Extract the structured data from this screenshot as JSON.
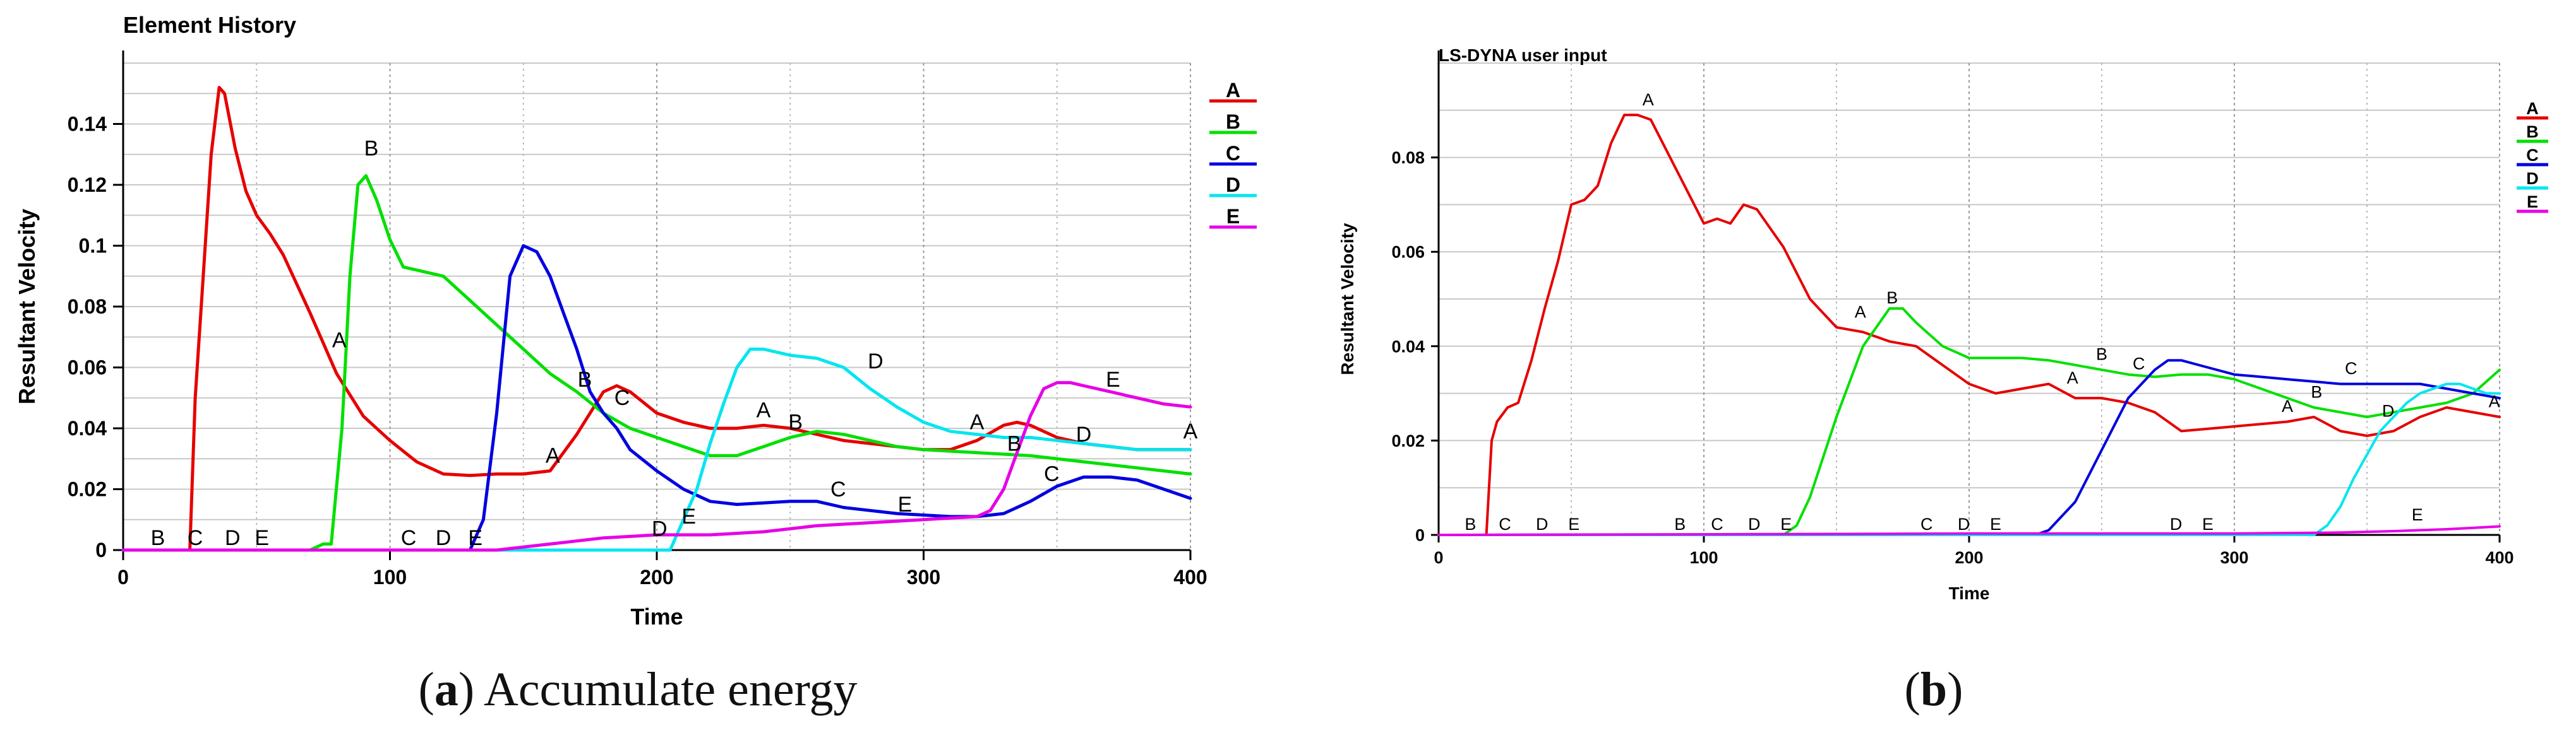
{
  "chart_data": [
    {
      "type": "line",
      "title": "Element History",
      "xlabel": "Time",
      "ylabel": "Resultant Velocity",
      "xlim": [
        0,
        400
      ],
      "ylim": [
        0,
        0.16
      ],
      "xticks": [
        0,
        100,
        200,
        300,
        400
      ],
      "yticks": [
        0,
        0.02,
        0.04,
        0.06,
        0.08,
        0.1,
        0.12,
        0.14
      ],
      "ytick_labels": [
        "0",
        "0.02",
        "0.04",
        "0.06",
        "0.08",
        "0.1",
        "0.12",
        "0.14"
      ],
      "grid": true,
      "legend_position": "right",
      "caption": {
        "letter": "a",
        "text": "Accumulate energy"
      },
      "series": [
        {
          "name": "A",
          "color": "#e60000",
          "x": [
            0,
            25,
            27,
            30,
            33,
            36,
            38,
            42,
            46,
            50,
            55,
            60,
            70,
            80,
            90,
            100,
            110,
            120,
            130,
            140,
            150,
            160,
            170,
            180,
            185,
            190,
            200,
            210,
            220,
            230,
            240,
            250,
            260,
            270,
            280,
            290,
            300,
            310,
            320,
            330,
            335,
            340,
            350,
            360,
            370,
            380,
            390,
            400
          ],
          "y": [
            0,
            0,
            0.05,
            0.09,
            0.13,
            0.152,
            0.15,
            0.132,
            0.118,
            0.11,
            0.104,
            0.097,
            0.078,
            0.058,
            0.044,
            0.036,
            0.029,
            0.025,
            0.0245,
            0.025,
            0.025,
            0.026,
            0.038,
            0.052,
            0.054,
            0.052,
            0.045,
            0.042,
            0.04,
            0.04,
            0.041,
            0.04,
            0.038,
            0.036,
            0.035,
            0.034,
            0.033,
            0.033,
            0.036,
            0.041,
            0.042,
            0.041,
            0.037,
            0.035,
            0.034,
            0.033,
            0.033,
            0.033
          ]
        },
        {
          "name": "B",
          "color": "#00e000",
          "x": [
            0,
            70,
            75,
            78,
            82,
            85,
            88,
            91,
            95,
            100,
            105,
            110,
            120,
            130,
            140,
            150,
            160,
            170,
            180,
            190,
            200,
            210,
            220,
            230,
            240,
            250,
            260,
            270,
            280,
            290,
            300,
            320,
            340,
            360,
            380,
            400
          ],
          "y": [
            0,
            0,
            0.002,
            0.002,
            0.04,
            0.09,
            0.12,
            0.123,
            0.115,
            0.102,
            0.093,
            0.092,
            0.09,
            0.082,
            0.074,
            0.066,
            0.058,
            0.052,
            0.045,
            0.04,
            0.037,
            0.034,
            0.031,
            0.031,
            0.034,
            0.037,
            0.039,
            0.038,
            0.036,
            0.034,
            0.033,
            0.032,
            0.031,
            0.029,
            0.027,
            0.025
          ]
        },
        {
          "name": "C",
          "color": "#0000e0",
          "x": [
            0,
            130,
            135,
            140,
            145,
            150,
            155,
            160,
            165,
            170,
            175,
            180,
            185,
            190,
            200,
            210,
            220,
            230,
            240,
            250,
            260,
            270,
            280,
            290,
            300,
            310,
            320,
            330,
            340,
            350,
            360,
            370,
            380,
            390,
            400
          ],
          "y": [
            0,
            0,
            0.01,
            0.045,
            0.09,
            0.1,
            0.098,
            0.09,
            0.078,
            0.066,
            0.052,
            0.045,
            0.04,
            0.033,
            0.026,
            0.02,
            0.016,
            0.015,
            0.0155,
            0.016,
            0.016,
            0.014,
            0.013,
            0.012,
            0.0115,
            0.011,
            0.011,
            0.012,
            0.016,
            0.021,
            0.024,
            0.024,
            0.023,
            0.02,
            0.017
          ]
        },
        {
          "name": "D",
          "color": "#00e6f0",
          "x": [
            0,
            205,
            210,
            215,
            220,
            225,
            230,
            235,
            240,
            250,
            260,
            270,
            280,
            290,
            300,
            310,
            320,
            330,
            340,
            350,
            360,
            370,
            380,
            390,
            400
          ],
          "y": [
            0,
            0,
            0.01,
            0.02,
            0.035,
            0.048,
            0.06,
            0.066,
            0.066,
            0.064,
            0.063,
            0.06,
            0.053,
            0.047,
            0.042,
            0.039,
            0.038,
            0.037,
            0.037,
            0.036,
            0.035,
            0.034,
            0.033,
            0.033,
            0.033
          ]
        },
        {
          "name": "E",
          "color": "#e600e6",
          "x": [
            0,
            140,
            160,
            180,
            200,
            220,
            240,
            260,
            280,
            300,
            310,
            320,
            325,
            330,
            335,
            340,
            345,
            350,
            355,
            360,
            370,
            380,
            390,
            400
          ],
          "y": [
            0,
            0,
            0.002,
            0.004,
            0.005,
            0.005,
            0.006,
            0.008,
            0.009,
            0.01,
            0.0105,
            0.011,
            0.013,
            0.02,
            0.032,
            0.044,
            0.053,
            0.055,
            0.055,
            0.054,
            0.052,
            0.05,
            0.048,
            0.047
          ]
        }
      ],
      "annotations": [
        {
          "text": "B",
          "x": 13,
          "y": 0
        },
        {
          "text": "C",
          "x": 27,
          "y": 0
        },
        {
          "text": "D",
          "x": 41,
          "y": 0
        },
        {
          "text": "E",
          "x": 52,
          "y": 0
        },
        {
          "text": "A",
          "x": 81,
          "y": 0.065
        },
        {
          "text": "B",
          "x": 93,
          "y": 0.128
        },
        {
          "text": "C",
          "x": 107,
          "y": 0
        },
        {
          "text": "D",
          "x": 120,
          "y": 0
        },
        {
          "text": "E",
          "x": 132,
          "y": 0
        },
        {
          "text": "A",
          "x": 161,
          "y": 0.027
        },
        {
          "text": "B",
          "x": 173,
          "y": 0.052
        },
        {
          "text": "C",
          "x": 187,
          "y": 0.046
        },
        {
          "text": "D",
          "x": 201,
          "y": 0.003
        },
        {
          "text": "E",
          "x": 212,
          "y": 0.007
        },
        {
          "text": "A",
          "x": 240,
          "y": 0.042
        },
        {
          "text": "B",
          "x": 252,
          "y": 0.038
        },
        {
          "text": "C",
          "x": 268,
          "y": 0.016
        },
        {
          "text": "D",
          "x": 282,
          "y": 0.058
        },
        {
          "text": "E",
          "x": 293,
          "y": 0.011
        },
        {
          "text": "A",
          "x": 320,
          "y": 0.038
        },
        {
          "text": "B",
          "x": 334,
          "y": 0.031
        },
        {
          "text": "C",
          "x": 348,
          "y": 0.021
        },
        {
          "text": "D",
          "x": 360,
          "y": 0.034
        },
        {
          "text": "E",
          "x": 371,
          "y": 0.052
        },
        {
          "text": "A",
          "x": 400,
          "y": 0.035
        }
      ]
    },
    {
      "type": "line",
      "title": "LS-DYNA user input",
      "xlabel": "Time",
      "ylabel": "Resultant Velocity",
      "xlim": [
        0,
        400
      ],
      "ylim": [
        0,
        0.1
      ],
      "xticks": [
        0,
        100,
        200,
        300,
        400
      ],
      "yticks": [
        0,
        0.02,
        0.04,
        0.06,
        0.08
      ],
      "ytick_labels": [
        "0",
        "0.02",
        "0.04",
        "0.06",
        "0.08"
      ],
      "grid": true,
      "legend_position": "right",
      "caption": {
        "letter": "b",
        "text": ""
      },
      "series": [
        {
          "name": "A",
          "color": "#e60000",
          "x": [
            0,
            18,
            20,
            22,
            26,
            30,
            35,
            40,
            45,
            50,
            55,
            60,
            65,
            70,
            75,
            80,
            90,
            100,
            105,
            110,
            115,
            120,
            130,
            140,
            150,
            160,
            170,
            180,
            190,
            200,
            210,
            220,
            230,
            240,
            250,
            260,
            270,
            280,
            290,
            300,
            310,
            320,
            330,
            340,
            350,
            360,
            370,
            380,
            390,
            400
          ],
          "y": [
            0,
            0,
            0.02,
            0.024,
            0.027,
            0.028,
            0.037,
            0.048,
            0.058,
            0.07,
            0.071,
            0.074,
            0.083,
            0.089,
            0.089,
            0.088,
            0.077,
            0.066,
            0.067,
            0.066,
            0.07,
            0.069,
            0.061,
            0.05,
            0.044,
            0.043,
            0.041,
            0.04,
            0.036,
            0.032,
            0.03,
            0.031,
            0.032,
            0.029,
            0.029,
            0.028,
            0.026,
            0.022,
            0.0225,
            0.023,
            0.0235,
            0.024,
            0.025,
            0.022,
            0.021,
            0.022,
            0.025,
            0.027,
            0.026,
            0.025
          ]
        },
        {
          "name": "B",
          "color": "#00e000",
          "x": [
            0,
            130,
            135,
            140,
            150,
            160,
            170,
            175,
            180,
            190,
            200,
            210,
            220,
            230,
            240,
            250,
            260,
            270,
            280,
            290,
            300,
            310,
            320,
            330,
            340,
            350,
            360,
            370,
            380,
            390,
            400
          ],
          "y": [
            0,
            0,
            0.002,
            0.008,
            0.025,
            0.04,
            0.048,
            0.048,
            0.045,
            0.04,
            0.0375,
            0.0375,
            0.0375,
            0.037,
            0.036,
            0.035,
            0.034,
            0.0335,
            0.034,
            0.034,
            0.033,
            0.031,
            0.029,
            0.027,
            0.026,
            0.025,
            0.026,
            0.027,
            0.028,
            0.03,
            0.035
          ]
        },
        {
          "name": "C",
          "color": "#0000e0",
          "x": [
            0,
            225,
            230,
            240,
            250,
            260,
            270,
            275,
            280,
            290,
            300,
            310,
            320,
            330,
            340,
            350,
            360,
            370,
            380,
            390,
            400
          ],
          "y": [
            0,
            0,
            0.001,
            0.007,
            0.018,
            0.029,
            0.035,
            0.037,
            0.037,
            0.0355,
            0.034,
            0.0335,
            0.033,
            0.0325,
            0.032,
            0.032,
            0.032,
            0.032,
            0.031,
            0.03,
            0.029
          ]
        },
        {
          "name": "D",
          "color": "#00e6f0",
          "x": [
            0,
            330,
            335,
            340,
            345,
            350,
            355,
            360,
            365,
            370,
            375,
            380,
            385,
            390,
            395,
            400
          ],
          "y": [
            0,
            0,
            0.002,
            0.006,
            0.012,
            0.017,
            0.022,
            0.025,
            0.028,
            0.03,
            0.031,
            0.032,
            0.032,
            0.031,
            0.03,
            0.03
          ]
        },
        {
          "name": "E",
          "color": "#e600e6",
          "x": [
            0,
            150,
            200,
            250,
            300,
            340,
            360,
            380,
            400
          ],
          "y": [
            0,
            0.0002,
            0.0003,
            0.0003,
            0.0003,
            0.0005,
            0.0008,
            0.0012,
            0.0018
          ]
        }
      ],
      "annotations": [
        {
          "text": "B",
          "x": 12,
          "y": 0
        },
        {
          "text": "C",
          "x": 25,
          "y": 0
        },
        {
          "text": "D",
          "x": 39,
          "y": 0
        },
        {
          "text": "E",
          "x": 51,
          "y": 0
        },
        {
          "text": "A",
          "x": 79,
          "y": 0.09
        },
        {
          "text": "B",
          "x": 91,
          "y": 0
        },
        {
          "text": "C",
          "x": 105,
          "y": 0
        },
        {
          "text": "D",
          "x": 119,
          "y": 0
        },
        {
          "text": "E",
          "x": 131,
          "y": 0
        },
        {
          "text": "A",
          "x": 159,
          "y": 0.045
        },
        {
          "text": "B",
          "x": 171,
          "y": 0.048
        },
        {
          "text": "C",
          "x": 184,
          "y": 0
        },
        {
          "text": "D",
          "x": 198,
          "y": 0
        },
        {
          "text": "E",
          "x": 210,
          "y": 0
        },
        {
          "text": "A",
          "x": 239,
          "y": 0.031
        },
        {
          "text": "B",
          "x": 250,
          "y": 0.036
        },
        {
          "text": "C",
          "x": 264,
          "y": 0.034
        },
        {
          "text": "D",
          "x": 278,
          "y": 0
        },
        {
          "text": "E",
          "x": 290,
          "y": 0
        },
        {
          "text": "A",
          "x": 320,
          "y": 0.025
        },
        {
          "text": "B",
          "x": 331,
          "y": 0.028
        },
        {
          "text": "C",
          "x": 344,
          "y": 0.033
        },
        {
          "text": "D",
          "x": 358,
          "y": 0.024
        },
        {
          "text": "E",
          "x": 369,
          "y": 0.002
        },
        {
          "text": "A",
          "x": 398,
          "y": 0.026
        }
      ]
    }
  ]
}
